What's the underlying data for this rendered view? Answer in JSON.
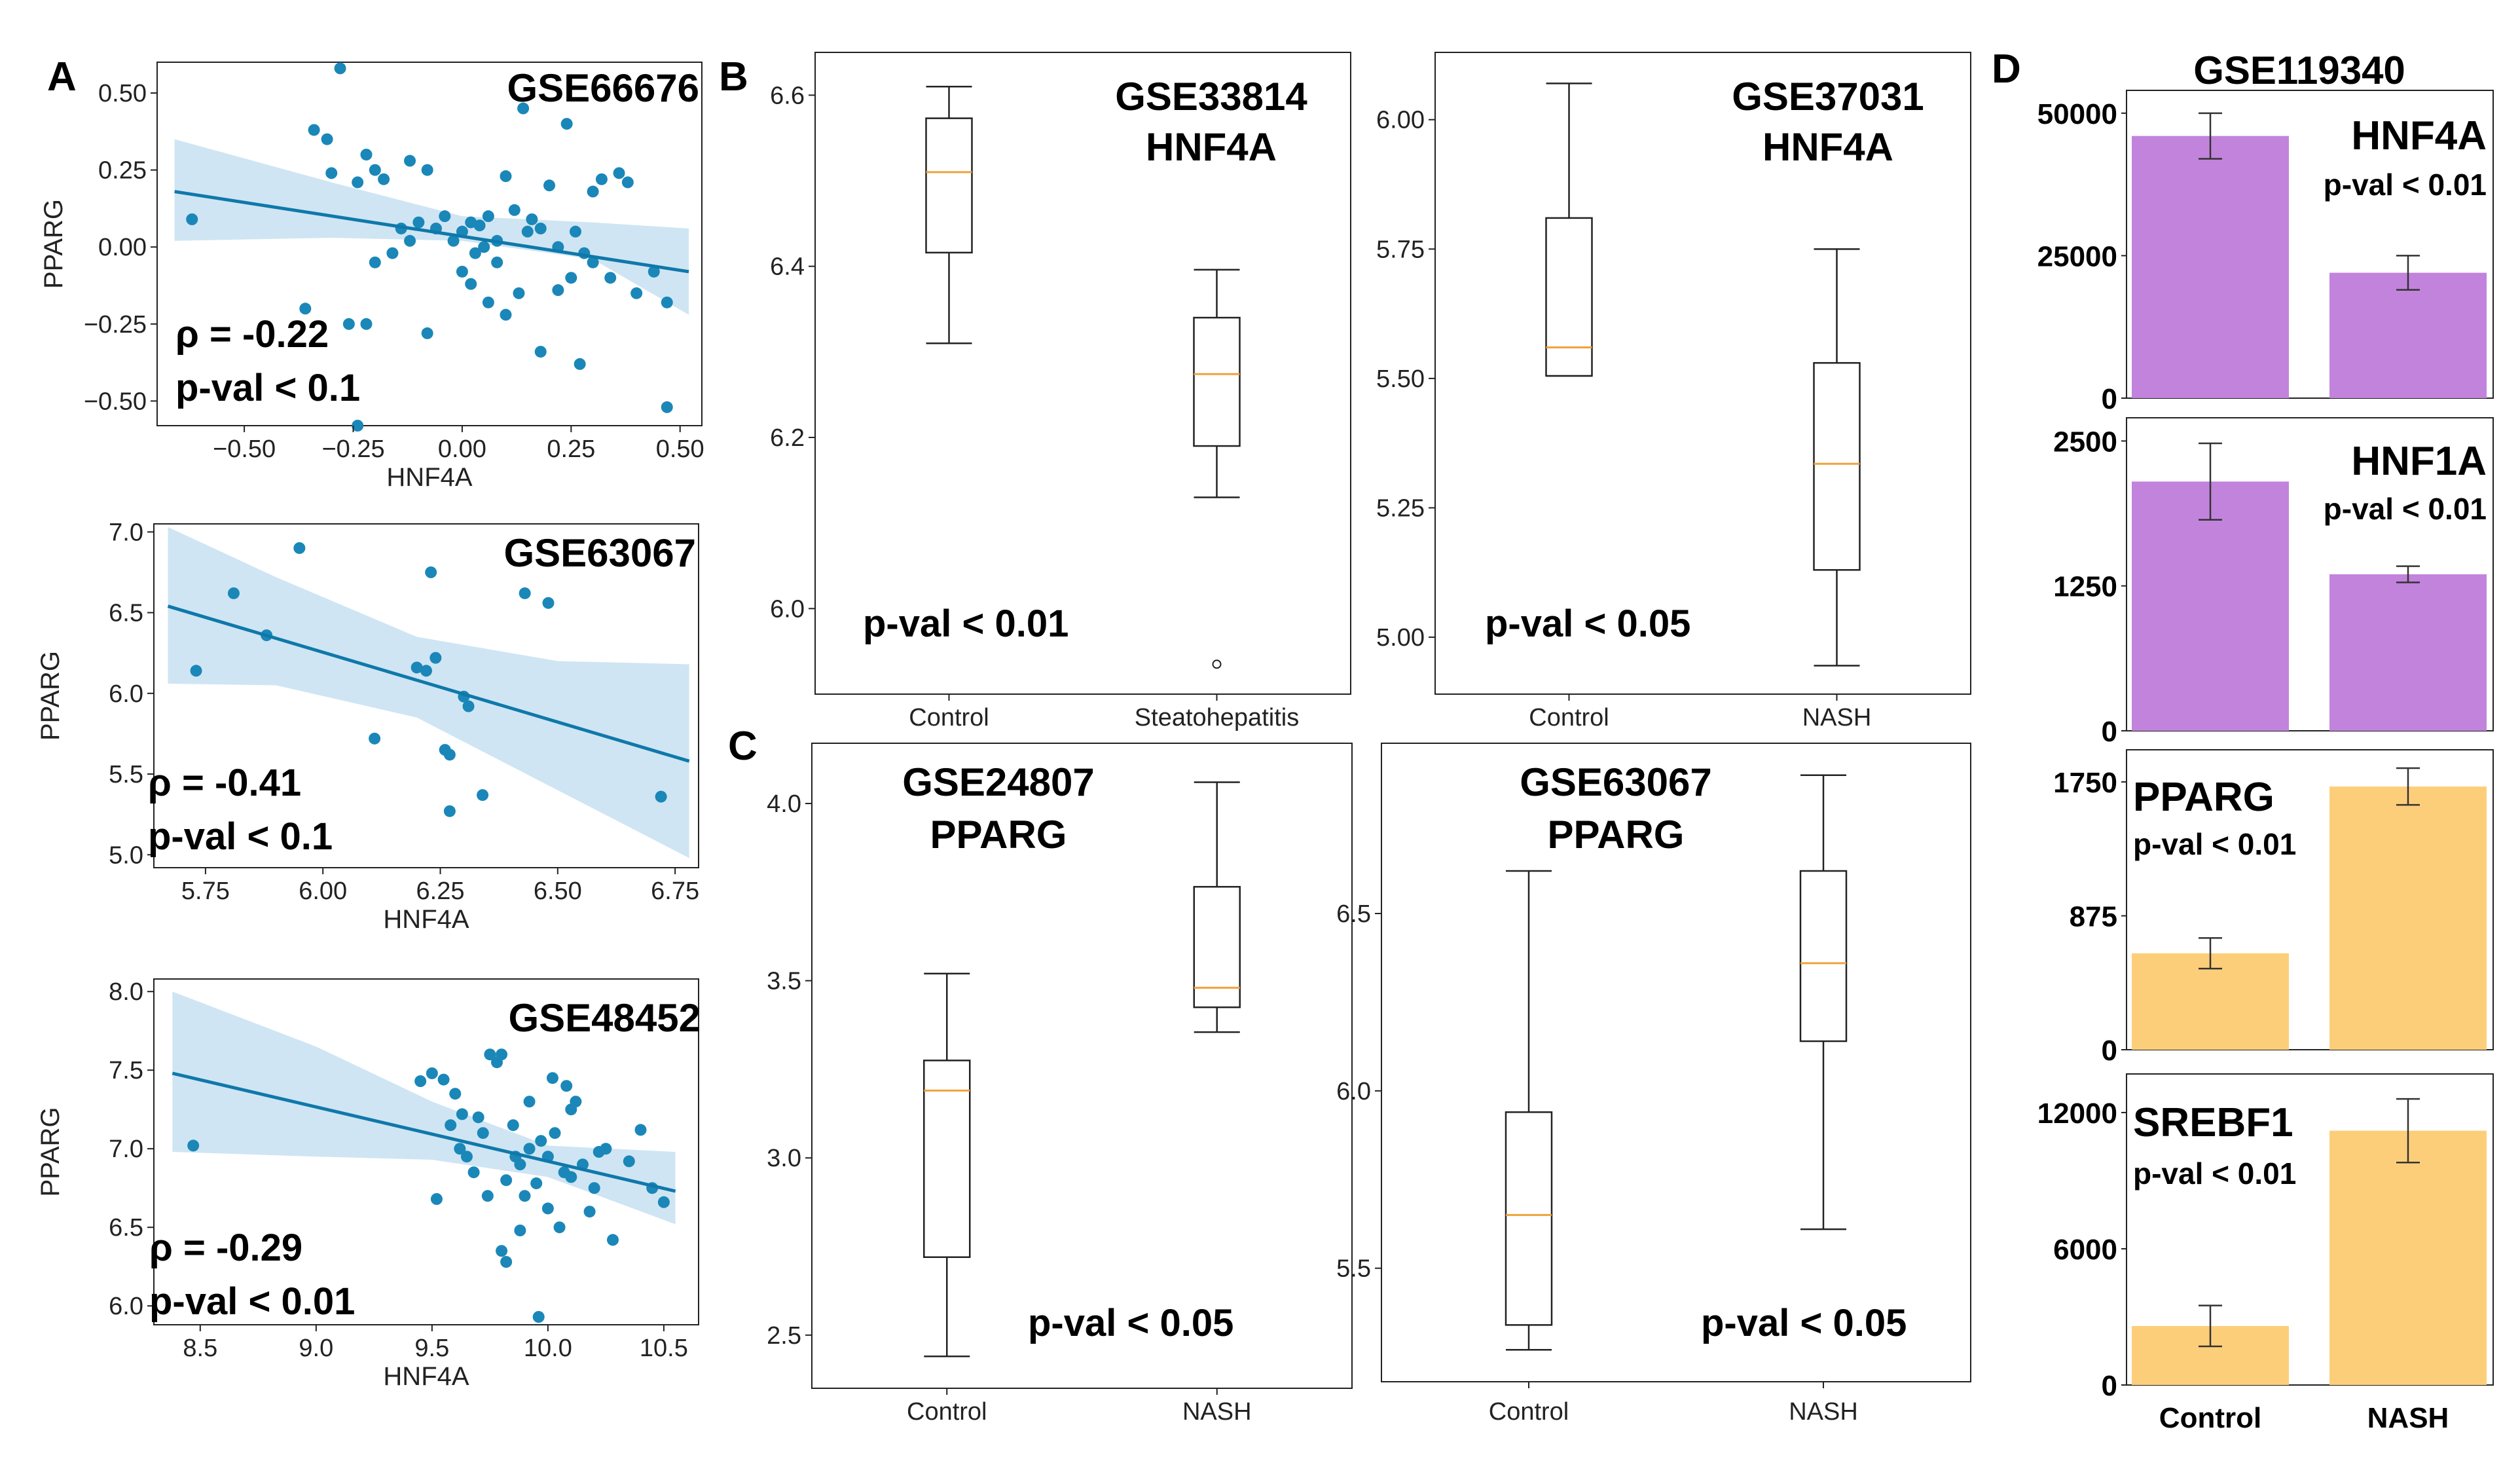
{
  "figure": {
    "panel_labels": [
      "A",
      "B",
      "C",
      "D"
    ],
    "colors": {
      "scatter": "#1a87b8",
      "fit_line": "#0f78aa",
      "ci_band": "#cfe5f3",
      "box_median": "#f0a23c",
      "bar_purple": "#c283dc",
      "bar_orange": "#fdce7a"
    }
  },
  "chart_data": [
    {
      "id": "A1",
      "type": "scatter",
      "panel": "A",
      "title": "GSE66676",
      "xlabel": "HNF4A",
      "ylabel": "PPARG",
      "xlim": [
        -0.7,
        0.55
      ],
      "ylim": [
        -0.58,
        0.6
      ],
      "xticks": [
        -0.5,
        -0.25,
        0,
        0.25,
        0.5
      ],
      "xtick_labels": [
        "−0.50",
        "−0.25",
        "0.00",
        "0.25",
        "0.50"
      ],
      "yticks": [
        -0.5,
        -0.25,
        0,
        0.25,
        0.5
      ],
      "ytick_labels": [
        "−0.50",
        "−0.25",
        "0.00",
        "0.25",
        "0.50"
      ],
      "rho": "ρ = -0.22",
      "pval": "p-val < 0.1",
      "fit": {
        "x": [
          -0.66,
          0.52
        ],
        "y": [
          0.18,
          -0.08
        ]
      },
      "ci": {
        "x": [
          -0.66,
          -0.3,
          0,
          0.3,
          0.52
        ],
        "lower": [
          0.02,
          0.03,
          0.02,
          -0.04,
          -0.22
        ],
        "upper": [
          0.35,
          0.21,
          0.1,
          0.08,
          0.06
        ]
      },
      "points": [
        [
          -0.62,
          0.09
        ],
        [
          -0.28,
          0.58
        ],
        [
          -0.34,
          0.38
        ],
        [
          -0.31,
          0.35
        ],
        [
          -0.3,
          0.24
        ],
        [
          -0.24,
          0.21
        ],
        [
          -0.22,
          0.3
        ],
        [
          -0.2,
          0.25
        ],
        [
          -0.18,
          0.22
        ],
        [
          -0.12,
          0.28
        ],
        [
          -0.08,
          0.25
        ],
        [
          -0.1,
          0.08
        ],
        [
          -0.06,
          0.06
        ],
        [
          -0.04,
          0.1
        ],
        [
          -0.02,
          0.02
        ],
        [
          0.0,
          0.05
        ],
        [
          0.02,
          0.08
        ],
        [
          0.03,
          -0.02
        ],
        [
          0.04,
          0.07
        ],
        [
          0.05,
          0.0
        ],
        [
          0.06,
          0.1
        ],
        [
          0.08,
          -0.05
        ],
        [
          0.1,
          0.23
        ],
        [
          0.12,
          0.12
        ],
        [
          0.14,
          0.45
        ],
        [
          0.16,
          0.09
        ],
        [
          0.18,
          0.06
        ],
        [
          0.2,
          0.2
        ],
        [
          0.22,
          0.0
        ],
        [
          0.24,
          0.4
        ],
        [
          0.26,
          0.05
        ],
        [
          0.28,
          -0.02
        ],
        [
          0.3,
          0.18
        ],
        [
          0.32,
          0.22
        ],
        [
          0.34,
          -0.1
        ],
        [
          0.36,
          0.24
        ],
        [
          0.38,
          0.21
        ],
        [
          0.4,
          -0.15
        ],
        [
          0.44,
          -0.08
        ],
        [
          0.47,
          -0.18
        ],
        [
          0.47,
          -0.52
        ],
        [
          -0.12,
          0.02
        ],
        [
          -0.14,
          0.06
        ],
        [
          -0.16,
          -0.02
        ],
        [
          0.0,
          -0.08
        ],
        [
          0.02,
          -0.12
        ],
        [
          0.06,
          -0.18
        ],
        [
          0.1,
          -0.22
        ],
        [
          0.13,
          -0.15
        ],
        [
          0.18,
          -0.34
        ],
        [
          0.25,
          -0.1
        ],
        [
          0.27,
          -0.38
        ],
        [
          0.3,
          -0.05
        ],
        [
          -0.26,
          -0.25
        ],
        [
          -0.22,
          -0.25
        ],
        [
          -0.24,
          -0.58
        ],
        [
          -0.36,
          -0.2
        ],
        [
          -0.08,
          -0.28
        ],
        [
          -0.2,
          -0.05
        ],
        [
          0.08,
          0.02
        ],
        [
          0.15,
          0.05
        ],
        [
          0.22,
          -0.14
        ]
      ]
    },
    {
      "id": "A2",
      "type": "scatter",
      "panel": "A",
      "title": "GSE63067",
      "xlabel": "HNF4A",
      "ylabel": "PPARG",
      "xlim": [
        5.64,
        6.8
      ],
      "ylim": [
        4.92,
        7.05
      ],
      "xticks": [
        5.75,
        6.0,
        6.25,
        6.5,
        6.75
      ],
      "xtick_labels": [
        "5.75",
        "6.00",
        "6.25",
        "6.50",
        "6.75"
      ],
      "yticks": [
        5.0,
        5.5,
        6.0,
        6.5,
        7.0
      ],
      "ytick_labels": [
        "5.0",
        "5.5",
        "6.0",
        "6.5",
        "7.0"
      ],
      "rho": "ρ = -0.41",
      "pval": "p-val < 0.1",
      "fit": {
        "x": [
          5.67,
          6.78
        ],
        "y": [
          6.54,
          5.58
        ]
      },
      "ci": {
        "x": [
          5.67,
          5.9,
          6.2,
          6.5,
          6.78
        ],
        "lower": [
          6.06,
          6.05,
          5.85,
          5.4,
          4.98
        ],
        "upper": [
          7.03,
          6.72,
          6.35,
          6.2,
          6.18
        ]
      },
      "points": [
        [
          5.73,
          6.14
        ],
        [
          5.81,
          6.62
        ],
        [
          5.88,
          6.36
        ],
        [
          5.95,
          6.9
        ],
        [
          6.11,
          5.72
        ],
        [
          6.2,
          6.16
        ],
        [
          6.22,
          6.14
        ],
        [
          6.24,
          6.22
        ],
        [
          6.23,
          6.75
        ],
        [
          6.26,
          5.65
        ],
        [
          6.27,
          5.62
        ],
        [
          6.27,
          5.27
        ],
        [
          6.3,
          5.98
        ],
        [
          6.31,
          5.92
        ],
        [
          6.34,
          5.37
        ],
        [
          6.43,
          6.62
        ],
        [
          6.48,
          6.56
        ],
        [
          6.72,
          5.36
        ]
      ]
    },
    {
      "id": "A3",
      "type": "scatter",
      "panel": "A",
      "title": "GSE48452",
      "xlabel": "HNF4A",
      "ylabel": "PPARG",
      "xlim": [
        8.3,
        10.65
      ],
      "ylim": [
        5.88,
        8.08
      ],
      "xticks": [
        8.5,
        9.0,
        9.5,
        10.0,
        10.5
      ],
      "xtick_labels": [
        "8.5",
        "9.0",
        "9.5",
        "10.0",
        "10.5"
      ],
      "yticks": [
        6.0,
        6.5,
        7.0,
        7.5,
        8.0
      ],
      "ytick_labels": [
        "6.0",
        "6.5",
        "7.0",
        "7.5",
        "8.0"
      ],
      "rho": "ρ = -0.29",
      "pval": "p-val < 0.01",
      "fit": {
        "x": [
          8.38,
          10.55
        ],
        "y": [
          7.48,
          6.73
        ]
      },
      "ci": {
        "x": [
          8.38,
          9.0,
          9.5,
          10.0,
          10.55
        ],
        "lower": [
          6.98,
          6.95,
          6.93,
          6.82,
          6.52
        ],
        "upper": [
          8.0,
          7.65,
          7.3,
          7.02,
          6.98
        ]
      },
      "points": [
        [
          8.47,
          7.02
        ],
        [
          9.45,
          7.43
        ],
        [
          9.5,
          7.48
        ],
        [
          9.55,
          7.44
        ],
        [
          9.6,
          7.35
        ],
        [
          9.52,
          6.68
        ],
        [
          9.62,
          7.0
        ],
        [
          9.65,
          6.95
        ],
        [
          9.7,
          7.2
        ],
        [
          9.72,
          7.1
        ],
        [
          9.75,
          7.6
        ],
        [
          9.78,
          7.55
        ],
        [
          9.8,
          7.6
        ],
        [
          9.82,
          6.8
        ],
        [
          9.8,
          6.35
        ],
        [
          9.82,
          6.28
        ],
        [
          9.85,
          7.15
        ],
        [
          9.88,
          6.9
        ],
        [
          9.9,
          6.7
        ],
        [
          9.92,
          7.0
        ],
        [
          9.95,
          6.78
        ],
        [
          9.97,
          7.05
        ],
        [
          10.0,
          6.95
        ],
        [
          10.02,
          7.45
        ],
        [
          10.05,
          6.5
        ],
        [
          10.07,
          6.85
        ],
        [
          10.08,
          7.4
        ],
        [
          10.1,
          7.25
        ],
        [
          10.12,
          7.3
        ],
        [
          10.15,
          6.9
        ],
        [
          10.18,
          6.6
        ],
        [
          10.2,
          6.75
        ],
        [
          10.22,
          6.98
        ],
        [
          10.25,
          7.0
        ],
        [
          10.28,
          6.42
        ],
        [
          10.35,
          6.92
        ],
        [
          10.4,
          7.12
        ],
        [
          10.45,
          6.75
        ],
        [
          10.5,
          6.66
        ],
        [
          9.96,
          5.93
        ],
        [
          9.58,
          7.15
        ],
        [
          9.68,
          6.85
        ],
        [
          9.74,
          6.7
        ],
        [
          9.86,
          6.95
        ],
        [
          9.92,
          7.3
        ],
        [
          10.03,
          7.1
        ],
        [
          10.1,
          6.82
        ],
        [
          10.0,
          6.62
        ],
        [
          9.88,
          6.48
        ],
        [
          9.63,
          7.22
        ]
      ]
    },
    {
      "id": "B1",
      "type": "box",
      "panel": "B",
      "title_lines": [
        "GSE33814",
        "HNF4A"
      ],
      "pval": "p-val < 0.01",
      "ylim": [
        5.9,
        6.65
      ],
      "yticks": [
        6.0,
        6.2,
        6.4,
        6.6
      ],
      "ytick_labels": [
        "6.0",
        "6.2",
        "6.4",
        "6.6"
      ],
      "categories": [
        "Control",
        "Steatohepatitis"
      ],
      "boxes": [
        {
          "label": "Control",
          "whislo": 6.31,
          "q1": 6.416,
          "med": 6.51,
          "q3": 6.573,
          "whishi": 6.61,
          "fliers": []
        },
        {
          "label": "Steatohepatitis",
          "whislo": 6.13,
          "q1": 6.19,
          "med": 6.274,
          "q3": 6.34,
          "whishi": 6.396,
          "fliers": [
            5.935
          ]
        }
      ]
    },
    {
      "id": "B2",
      "type": "box",
      "panel": "B",
      "title_lines": [
        "GSE37031",
        "HNF4A"
      ],
      "pval": "p-val < 0.05",
      "ylim": [
        4.89,
        6.13
      ],
      "yticks": [
        5.0,
        5.25,
        5.5,
        5.75,
        6.0
      ],
      "ytick_labels": [
        "5.00",
        "5.25",
        "5.50",
        "5.75",
        "6.00"
      ],
      "categories": [
        "Control",
        "NASH"
      ],
      "boxes": [
        {
          "label": "Control",
          "whislo": 5.505,
          "q1": 5.505,
          "med": 5.56,
          "q3": 5.81,
          "whishi": 6.07,
          "fliers": []
        },
        {
          "label": "NASH",
          "whislo": 4.945,
          "q1": 5.13,
          "med": 5.335,
          "q3": 5.53,
          "whishi": 5.75,
          "fliers": []
        }
      ]
    },
    {
      "id": "C1",
      "type": "box",
      "panel": "C",
      "title_lines": [
        "GSE24807",
        "PPARG"
      ],
      "pval": "p-val < 0.05",
      "ylim": [
        2.35,
        4.17
      ],
      "yticks": [
        2.5,
        3.0,
        3.5,
        4.0
      ],
      "ytick_labels": [
        "2.5",
        "3.0",
        "3.5",
        "4.0"
      ],
      "categories": [
        "Control",
        "NASH"
      ],
      "boxes": [
        {
          "label": "Control",
          "whislo": 2.44,
          "q1": 2.72,
          "med": 3.19,
          "q3": 3.275,
          "whishi": 3.52,
          "fliers": []
        },
        {
          "label": "NASH",
          "whislo": 3.355,
          "q1": 3.425,
          "med": 3.48,
          "q3": 3.765,
          "whishi": 4.06,
          "fliers": []
        }
      ]
    },
    {
      "id": "C2",
      "type": "box",
      "panel": "C",
      "title_lines": [
        "GSE63067",
        "PPARG"
      ],
      "pval": "p-val < 0.05",
      "ylim": [
        5.18,
        6.98
      ],
      "yticks": [
        5.5,
        6.0,
        6.5
      ],
      "ytick_labels": [
        "5.5",
        "6.0",
        "6.5"
      ],
      "categories": [
        "Control",
        "NASH"
      ],
      "boxes": [
        {
          "label": "Control",
          "whislo": 5.27,
          "q1": 5.34,
          "med": 5.65,
          "q3": 5.94,
          "whishi": 6.62,
          "fliers": []
        },
        {
          "label": "NASH",
          "whislo": 5.61,
          "q1": 6.14,
          "med": 6.36,
          "q3": 6.62,
          "whishi": 6.89,
          "fliers": []
        }
      ]
    },
    {
      "id": "D1",
      "type": "bar",
      "panel": "D",
      "dataset": "GSE119340",
      "gene": "HNF4A",
      "pval": "p-val < 0.01",
      "color": "purple",
      "ylim": [
        0,
        54000
      ],
      "yticks": [
        0,
        25000,
        50000
      ],
      "ytick_labels": [
        "0",
        "25000",
        "50000"
      ],
      "categories": [
        "Control",
        "NASH"
      ],
      "values": [
        46000,
        22000
      ],
      "errors": [
        4000,
        3000
      ]
    },
    {
      "id": "D2",
      "type": "bar",
      "panel": "D",
      "gene": "HNF1A",
      "pval": "p-val < 0.01",
      "color": "purple",
      "ylim": [
        0,
        2700
      ],
      "yticks": [
        0,
        1250,
        2500
      ],
      "ytick_labels": [
        "0",
        "1250",
        "2500"
      ],
      "categories": [
        "Control",
        "NASH"
      ],
      "values": [
        2150,
        1350
      ],
      "errors": [
        330,
        70
      ]
    },
    {
      "id": "D3",
      "type": "bar",
      "panel": "D",
      "gene": "PPARG",
      "pval": "p-val < 0.01",
      "color": "orange",
      "ylim": [
        0,
        1960
      ],
      "yticks": [
        0,
        875,
        1750
      ],
      "ytick_labels": [
        "0",
        "875",
        "1750"
      ],
      "categories": [
        "Control",
        "NASH"
      ],
      "values": [
        630,
        1720
      ],
      "errors": [
        100,
        120
      ]
    },
    {
      "id": "D4",
      "type": "bar",
      "panel": "D",
      "gene": "SREBF1",
      "pval": "p-val < 0.01",
      "color": "orange",
      "ylim": [
        0,
        13700
      ],
      "yticks": [
        0,
        6000,
        12000
      ],
      "ytick_labels": [
        "0",
        "6000",
        "12000"
      ],
      "categories": [
        "Control",
        "NASH"
      ],
      "values": [
        2600,
        11200
      ],
      "errors": [
        900,
        1400
      ]
    }
  ]
}
